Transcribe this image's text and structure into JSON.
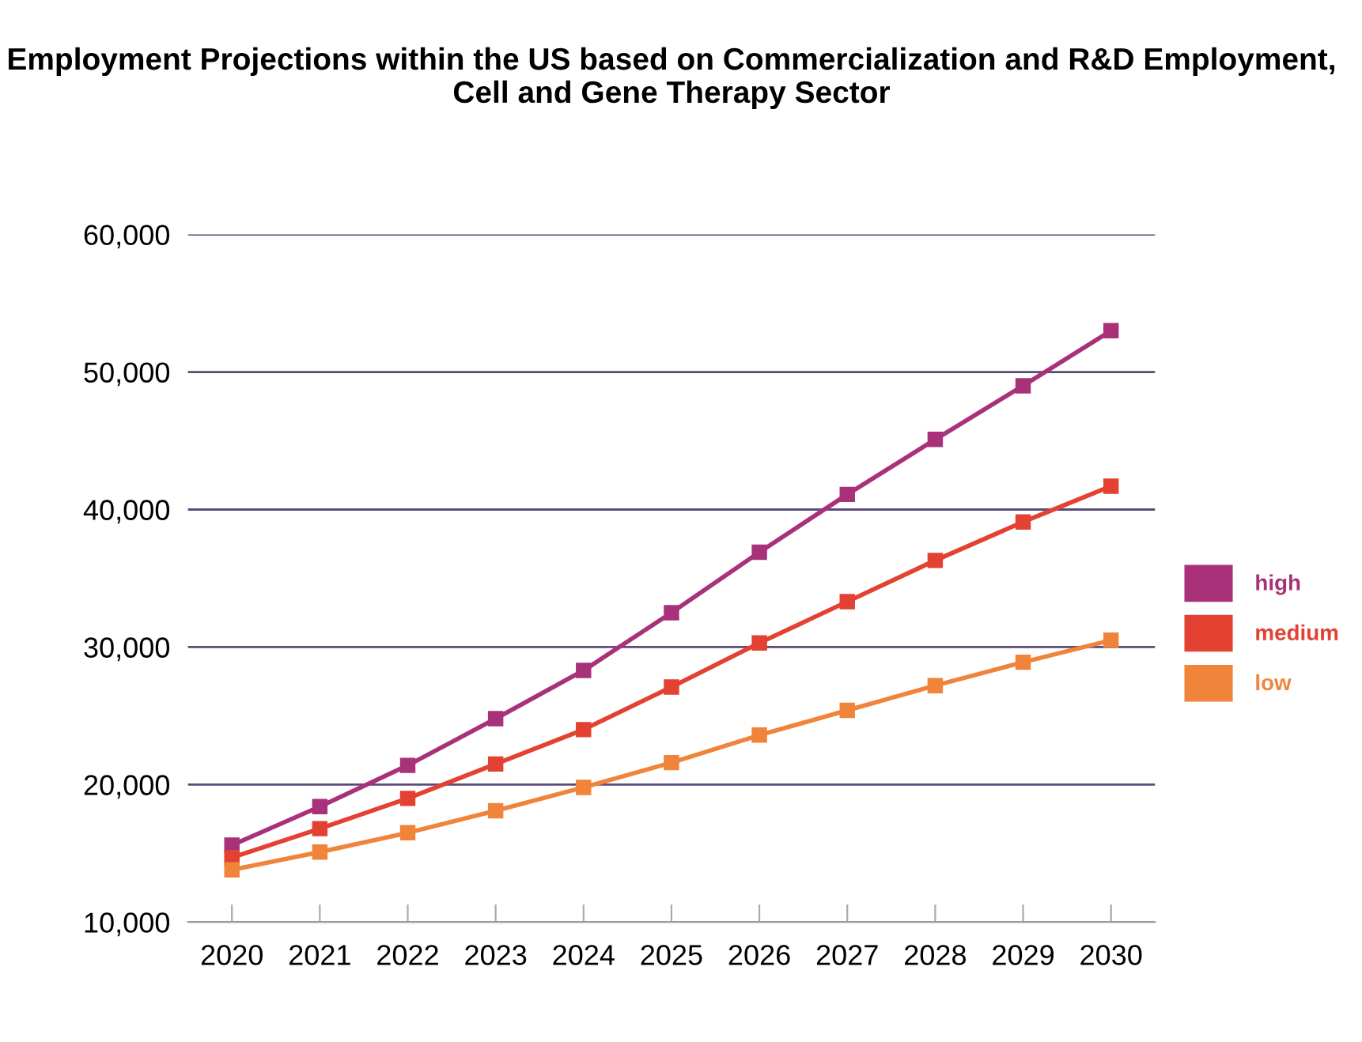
{
  "chart_data": {
    "type": "line",
    "title": "Employment Projections within the US based on Commercialization and R&D Employment,\nCell and Gene Therapy Sector",
    "categories": [
      "2020",
      "2021",
      "2022",
      "2023",
      "2024",
      "2025",
      "2026",
      "2027",
      "2028",
      "2029",
      "2030"
    ],
    "series": [
      {
        "name": "high",
        "color": "#a8317a",
        "values": [
          15600,
          18400,
          21400,
          24800,
          28300,
          32500,
          36900,
          41100,
          45100,
          49000,
          53000
        ]
      },
      {
        "name": "medium",
        "color": "#e34232",
        "values": [
          14700,
          16800,
          19000,
          21500,
          24000,
          27100,
          30300,
          33300,
          36300,
          39100,
          41700
        ]
      },
      {
        "name": "low",
        "color": "#f0843a",
        "values": [
          13800,
          15100,
          16500,
          18100,
          19800,
          21600,
          23600,
          25400,
          27200,
          28900,
          30500
        ]
      }
    ],
    "ylim": [
      10000,
      60000
    ],
    "yticks": [
      {
        "value": 10000,
        "label": "10,000"
      },
      {
        "value": 20000,
        "label": "20,000"
      },
      {
        "value": 30000,
        "label": "30,000"
      },
      {
        "value": 40000,
        "label": "40,000"
      },
      {
        "value": 50000,
        "label": "50,000"
      },
      {
        "value": 60000,
        "label": "60,000"
      }
    ],
    "grid": "y",
    "legend": "right",
    "marker": "square",
    "line_style": "solid"
  }
}
